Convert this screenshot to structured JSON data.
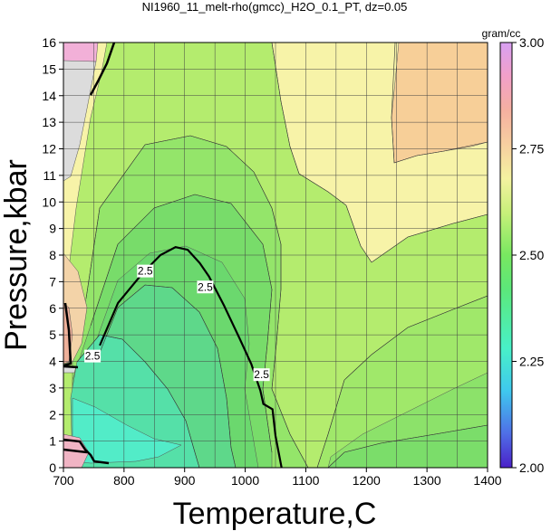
{
  "chart_data": {
    "type": "heatmap",
    "title": "NI1960_11_melt-rho(gmcc)_H2O_0.1_PT, dz=0.05",
    "xlabel": "Temperature,C",
    "ylabel": "Pressure,kbar",
    "xlim": [
      700,
      1400
    ],
    "ylim": [
      0,
      16
    ],
    "x_ticks": [
      700,
      800,
      900,
      1000,
      1100,
      1200,
      1300,
      1400
    ],
    "y_ticks": [
      0,
      1,
      2,
      3,
      4,
      5,
      6,
      7,
      8,
      9,
      10,
      11,
      12,
      13,
      14,
      15,
      16
    ],
    "grid": true,
    "colorbar": {
      "label": "gram/cc",
      "min": 2.0,
      "max": 3.0,
      "ticks": [
        "2.00",
        "2.25",
        "2.50",
        "2.75",
        "3.00"
      ]
    },
    "labeled_contour": {
      "level": "2.5",
      "points": [
        [
          760,
          4.6
        ],
        [
          790,
          6.2
        ],
        [
          830,
          7.3
        ],
        [
          860,
          8.0
        ],
        [
          885,
          8.3
        ],
        [
          905,
          8.2
        ],
        [
          925,
          7.7
        ],
        [
          940,
          7.2
        ],
        [
          965,
          6.1
        ],
        [
          990,
          4.9
        ],
        [
          1010,
          3.9
        ],
        [
          1025,
          2.9
        ],
        [
          1030,
          2.4
        ],
        [
          1045,
          2.2
        ],
        [
          1050,
          1.2
        ],
        [
          1060,
          0
        ]
      ],
      "label_positions": [
        [
          835,
          7.4
        ],
        [
          934,
          6.8
        ],
        [
          1027,
          3.5
        ],
        [
          748,
          4.2
        ]
      ]
    }
  }
}
